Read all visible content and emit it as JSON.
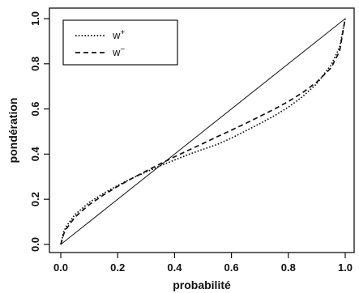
{
  "chart_data": {
    "type": "line",
    "title": "",
    "xlabel": "probabilité",
    "ylabel": "pondération",
    "xlim": [
      0.0,
      1.0
    ],
    "ylim": [
      0.0,
      1.0
    ],
    "x_ticks": [
      "0.0",
      "0.2",
      "0.4",
      "0.6",
      "0.8",
      "1.0"
    ],
    "y_ticks": [
      "0.0",
      "0.2",
      "0.4",
      "0.6",
      "0.8",
      "1.0"
    ],
    "grid": false,
    "legend_position": "top-left",
    "reference_line": {
      "x": [
        0.0,
        1.0
      ],
      "y": [
        0.0,
        1.0
      ]
    },
    "series": [
      {
        "name": "w+",
        "name_base": "w",
        "name_sup": "+",
        "line_style": "dotted",
        "x": [
          0.0,
          0.01,
          0.02,
          0.05,
          0.1,
          0.15,
          0.2,
          0.25,
          0.3,
          0.35,
          0.4,
          0.45,
          0.5,
          0.55,
          0.6,
          0.65,
          0.7,
          0.75,
          0.8,
          0.85,
          0.9,
          0.95,
          0.98,
          1.0
        ],
        "y": [
          0.0,
          0.055,
          0.081,
          0.132,
          0.186,
          0.226,
          0.261,
          0.293,
          0.321,
          0.348,
          0.374,
          0.399,
          0.421,
          0.443,
          0.471,
          0.503,
          0.535,
          0.569,
          0.608,
          0.654,
          0.712,
          0.794,
          0.872,
          1.0
        ]
      },
      {
        "name": "w−",
        "name_base": "w",
        "name_sup": "−",
        "line_style": "dashed",
        "x": [
          0.0,
          0.01,
          0.02,
          0.05,
          0.1,
          0.15,
          0.2,
          0.25,
          0.3,
          0.35,
          0.4,
          0.45,
          0.5,
          0.55,
          0.6,
          0.65,
          0.7,
          0.75,
          0.8,
          0.85,
          0.9,
          0.95,
          0.98,
          1.0
        ],
        "y": [
          0.0,
          0.045,
          0.07,
          0.121,
          0.176,
          0.219,
          0.257,
          0.292,
          0.325,
          0.357,
          0.388,
          0.418,
          0.447,
          0.477,
          0.506,
          0.536,
          0.567,
          0.599,
          0.633,
          0.672,
          0.719,
          0.781,
          0.855,
          1.0
        ]
      }
    ]
  }
}
